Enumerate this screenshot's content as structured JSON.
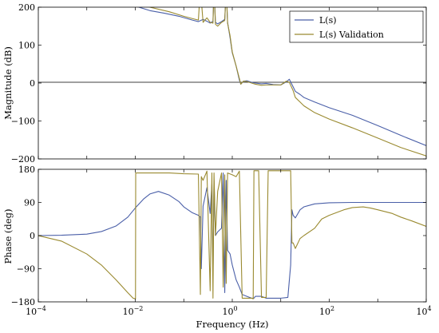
{
  "colors": {
    "series_a": "#4a5fa8",
    "series_b": "#9a8a30"
  },
  "chart_data": [
    {
      "type": "line",
      "name": "magnitude",
      "xscale": "log",
      "xlim": [
        0.0001,
        10000
      ],
      "ylim": [
        -200,
        200
      ],
      "ylabel": "Magnitude (dB)",
      "yticks": [
        -200,
        -100,
        0,
        100,
        200
      ],
      "yticklabels": [
        "−200",
        "−100",
        "0",
        "100",
        "200"
      ],
      "hline": 0,
      "legend": {
        "placement": "top-right",
        "entries": [
          "L(s)",
          "L(s) Validation"
        ]
      },
      "series": [
        {
          "name": "L(s)",
          "color": "#4a5fa8",
          "x": [
            0.0001,
            0.001,
            0.003,
            0.006,
            0.01,
            0.02,
            0.04,
            0.08,
            0.15,
            0.2,
            0.25,
            0.3,
            0.35,
            0.4,
            0.42,
            0.45,
            0.5,
            0.6,
            0.7,
            0.75,
            0.8,
            0.9,
            1.0,
            1.2,
            1.4,
            1.5,
            1.7,
            2.0,
            2.5,
            3.0,
            4.0,
            5.0,
            7.0,
            10,
            13,
            15,
            16,
            18,
            20,
            25,
            30,
            50,
            100,
            300,
            1000,
            3000,
            10000
          ],
          "y": [
            210,
            210,
            210,
            209,
            203,
            191,
            184,
            176,
            166,
            162,
            168,
            163,
            158,
            163,
            250,
            160,
            156,
            162,
            168,
            250,
            160,
            120,
            80,
            45,
            8,
            -3,
            5,
            6,
            2,
            0,
            -2,
            -1,
            -4,
            -5,
            3,
            10,
            3,
            -10,
            -22,
            -30,
            -38,
            -50,
            -65,
            -85,
            -112,
            -138,
            -165
          ]
        },
        {
          "name": "L(s) Validation",
          "color": "#9a8a30",
          "x": [
            0.0001,
            0.0003,
            0.001,
            0.002,
            0.005,
            0.01,
            0.02,
            0.05,
            0.1,
            0.15,
            0.2,
            0.22,
            0.25,
            0.3,
            0.35,
            0.4,
            0.42,
            0.45,
            0.5,
            0.6,
            0.7,
            0.75,
            0.8,
            0.9,
            1.0,
            1.2,
            1.4,
            1.5,
            1.7,
            2.0,
            2.5,
            3.0,
            4.0,
            5.0,
            7.0,
            10,
            13,
            15,
            18,
            20,
            25,
            30,
            50,
            100,
            300,
            1000,
            3000,
            10000
          ],
          "y": [
            245,
            245,
            242,
            238,
            227,
            213,
            200,
            188,
            176,
            170,
            166,
            250,
            160,
            172,
            160,
            158,
            250,
            155,
            150,
            160,
            165,
            250,
            158,
            125,
            82,
            45,
            12,
            -3,
            5,
            4,
            0,
            -3,
            -6,
            -5,
            -5,
            -5,
            5,
            2,
            -20,
            -38,
            -50,
            -60,
            -78,
            -95,
            -118,
            -145,
            -170,
            -192
          ]
        }
      ]
    },
    {
      "type": "line",
      "name": "phase",
      "xscale": "log",
      "xlim": [
        0.0001,
        10000
      ],
      "ylim": [
        -180,
        180
      ],
      "xlabel": "Frequency (Hz)",
      "ylabel": "Phase (deg)",
      "xticks": [
        0.0001,
        0.01,
        1,
        100,
        10000
      ],
      "xticklabels_base": [
        "10",
        "10",
        "10",
        "10",
        "10"
      ],
      "xticklabels_exp": [
        "−4",
        "−2",
        "0",
        "2",
        "4"
      ],
      "yticks": [
        -180,
        -90,
        0,
        90,
        180
      ],
      "yticklabels": [
        "−180",
        "−90",
        "0",
        "90",
        "180"
      ],
      "series": [
        {
          "name": "L(s)",
          "color": "#4a5fa8",
          "x": [
            0.0001,
            0.0003,
            0.001,
            0.002,
            0.004,
            0.007,
            0.01,
            0.015,
            0.02,
            0.03,
            0.05,
            0.08,
            0.1,
            0.15,
            0.2,
            0.22,
            0.23,
            0.25,
            0.3,
            0.35,
            0.38,
            0.4,
            0.42,
            0.45,
            0.5,
            0.6,
            0.65,
            0.7,
            0.75,
            0.8,
            0.9,
            1.0,
            1.2,
            1.4,
            1.6,
            2.0,
            2.5,
            2.8,
            3.0,
            3.5,
            4.0,
            5.0,
            7.0,
            10,
            14,
            16,
            17,
            18,
            20,
            25,
            30,
            50,
            100,
            300,
            1000,
            3000,
            10000
          ],
          "y": [
            0,
            1,
            4,
            11,
            26,
            50,
            75,
            100,
            113,
            120,
            110,
            92,
            78,
            62,
            55,
            50,
            -90,
            80,
            130,
            60,
            140,
            -110,
            150,
            0,
            10,
            20,
            170,
            -155,
            150,
            -40,
            -50,
            -80,
            -120,
            -140,
            -160,
            -165,
            -170,
            -170,
            -165,
            -165,
            -165,
            -170,
            -170,
            -170,
            -168,
            -80,
            70,
            55,
            48,
            70,
            78,
            86,
            89,
            90,
            90,
            90,
            90
          ]
        },
        {
          "name": "L(s) Validation",
          "color": "#9a8a30",
          "x": [
            0.0001,
            0.0003,
            0.001,
            0.002,
            0.004,
            0.007,
            0.009,
            0.0101,
            0.0102,
            0.02,
            0.05,
            0.1,
            0.2,
            0.22,
            0.23,
            0.25,
            0.3,
            0.35,
            0.38,
            0.4,
            0.42,
            0.45,
            0.5,
            0.6,
            0.65,
            0.7,
            0.75,
            0.8,
            1.0,
            1.2,
            1.4,
            1.6,
            2.0,
            2.5,
            2.7,
            2.8,
            3.5,
            4.0,
            5.0,
            5.5,
            6.0,
            7.0,
            10,
            14,
            16,
            17,
            18,
            20,
            25,
            30,
            50,
            70,
            100,
            200,
            300,
            500,
            700,
            1000,
            2000,
            3000,
            5000,
            10000
          ],
          "y": [
            0,
            -15,
            -50,
            -80,
            -120,
            -155,
            -170,
            -172,
            170,
            170,
            170,
            168,
            167,
            -160,
            160,
            150,
            175,
            -150,
            170,
            -170,
            170,
            0,
            120,
            170,
            -140,
            165,
            -130,
            170,
            165,
            160,
            175,
            -170,
            -170,
            -170,
            -172,
            176,
            176,
            -168,
            -168,
            176,
            176,
            176,
            176,
            176,
            176,
            -20,
            -20,
            -35,
            -8,
            0,
            20,
            45,
            55,
            70,
            76,
            78,
            75,
            70,
            60,
            50,
            40,
            25
          ]
        }
      ]
    }
  ]
}
